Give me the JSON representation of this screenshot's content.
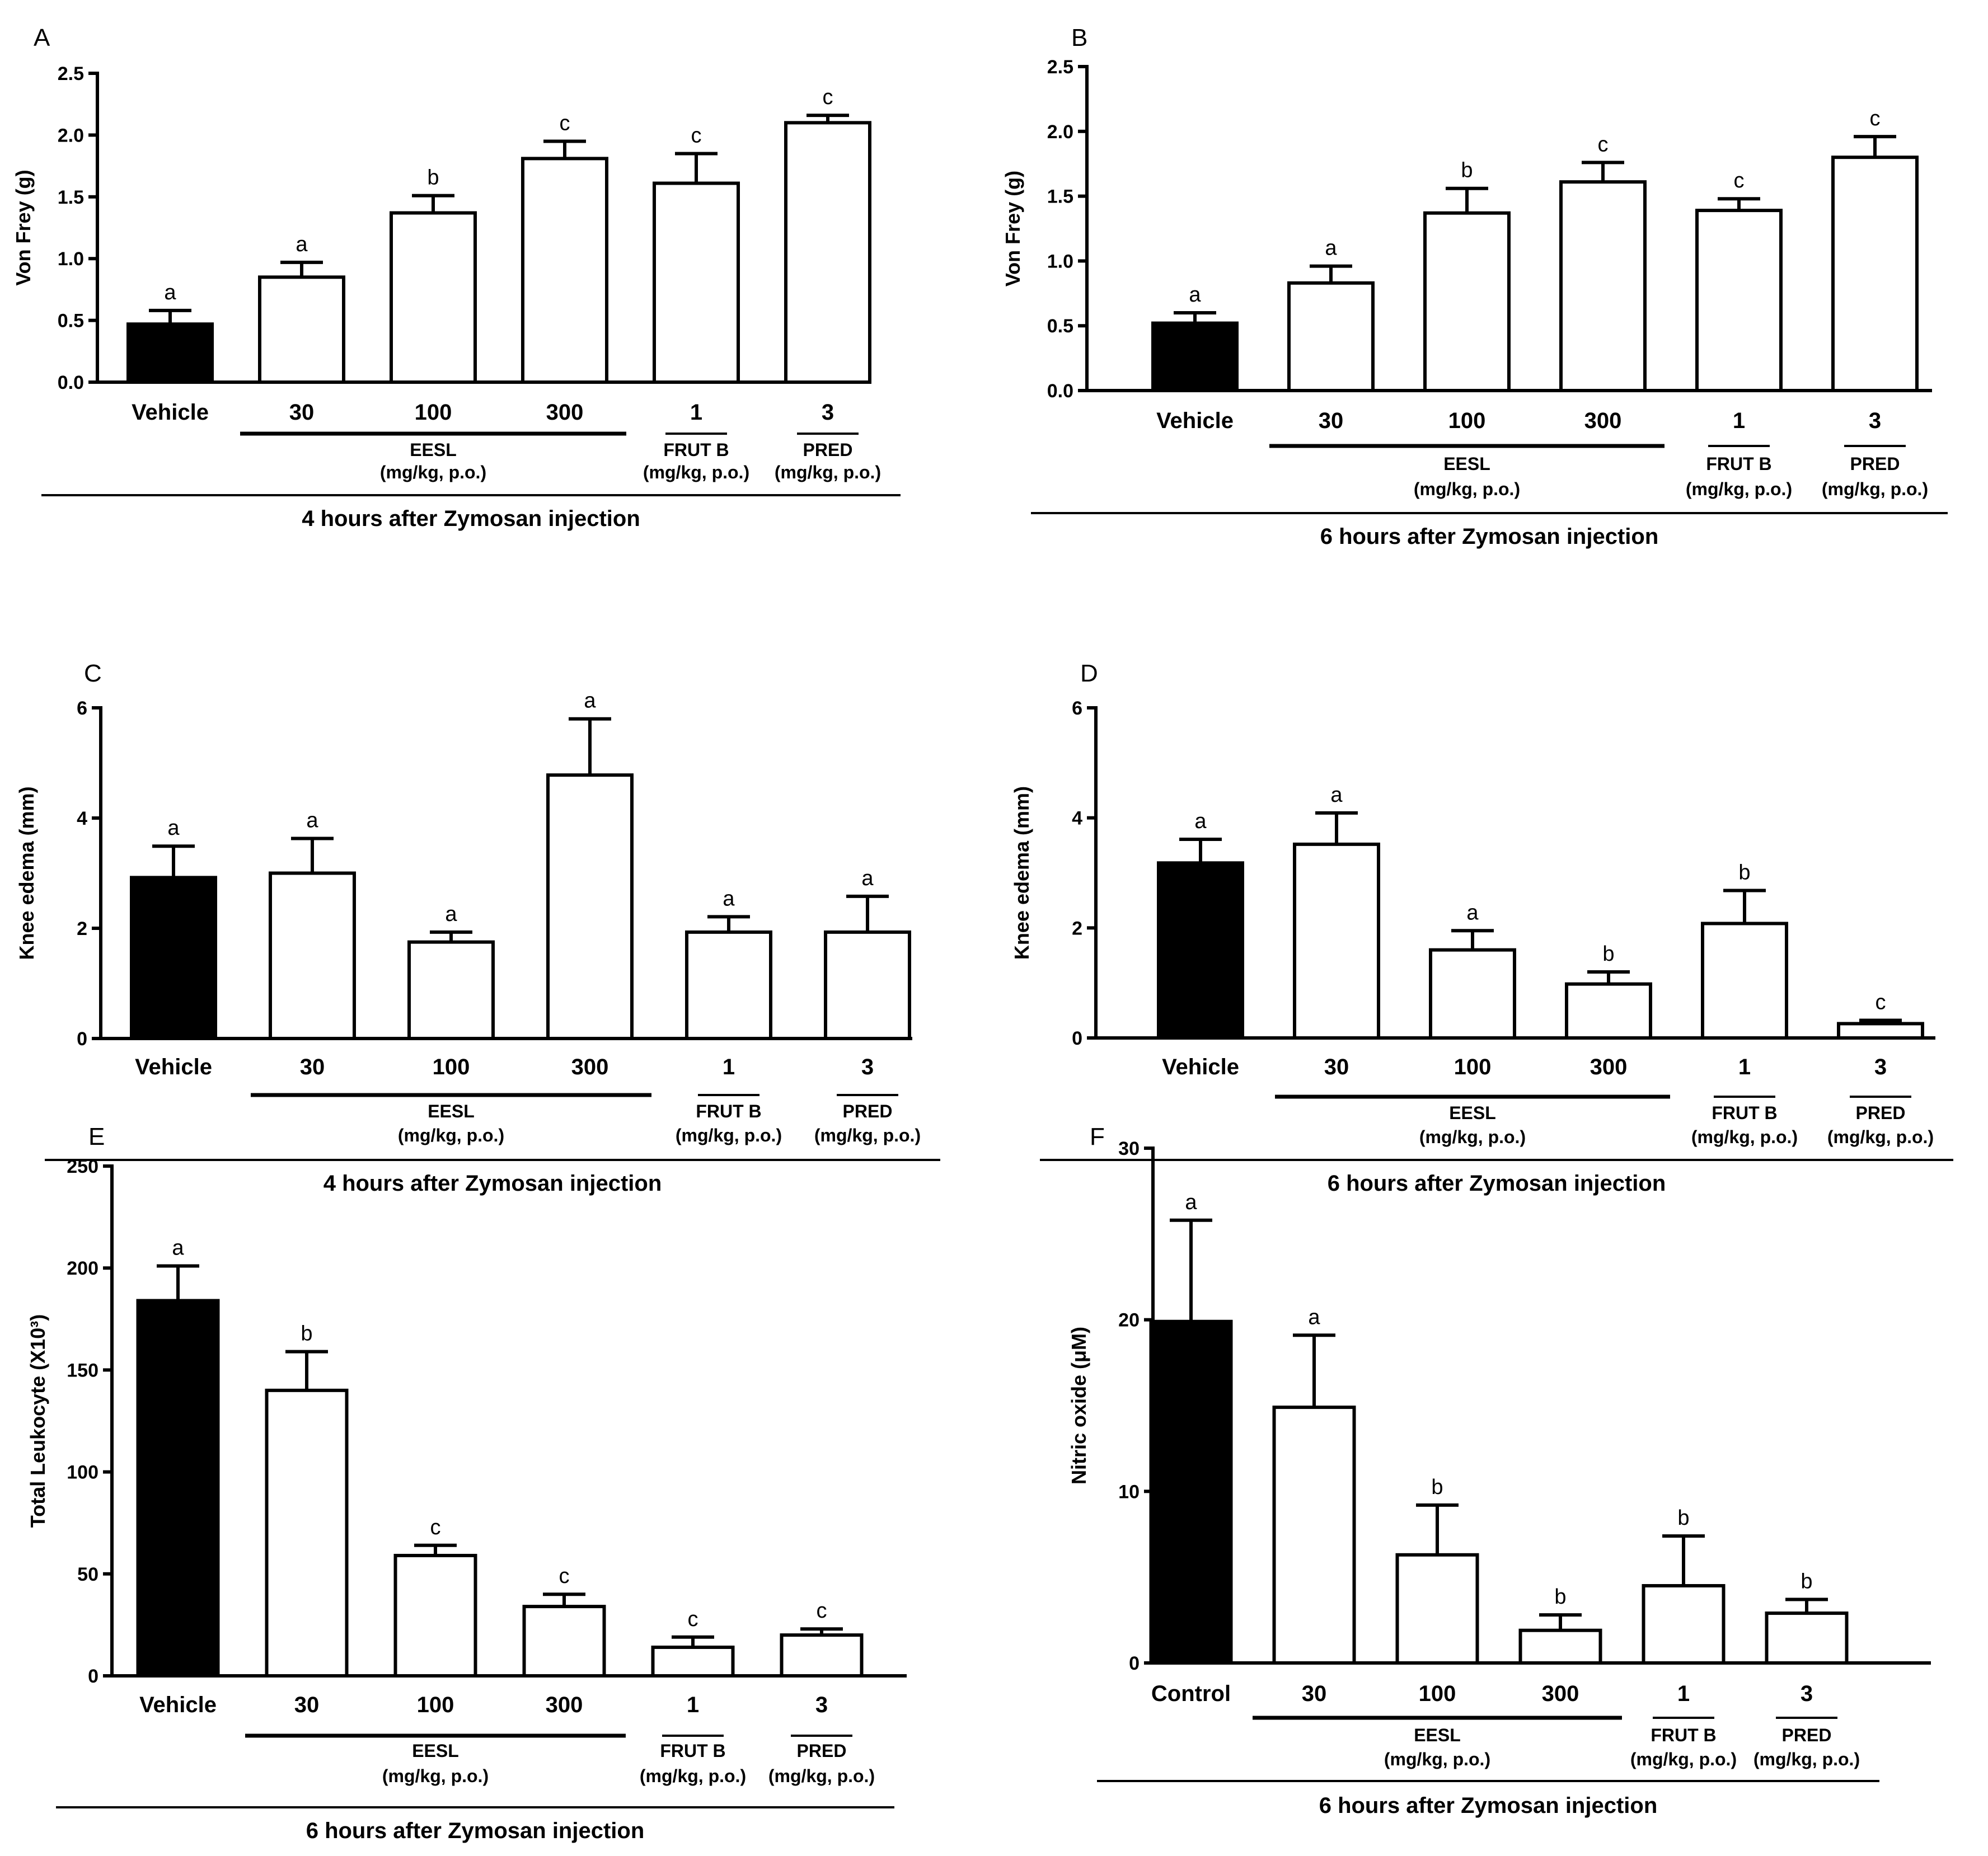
{
  "figure": {
    "background": "#ffffff",
    "vehicle_fill": "#000000",
    "treatment_fill": "#ffffff"
  },
  "chart_data": [
    {
      "panel": "A",
      "type": "bar",
      "ylabel": "Von Frey (g)",
      "ylim": [
        0,
        2.5
      ],
      "yticks": [
        "0.0",
        "0.5",
        "1.0",
        "1.5",
        "2.0",
        "2.5"
      ],
      "categories": [
        "Vehicle",
        "30",
        "100",
        "300",
        "1",
        "3"
      ],
      "values": [
        0.47,
        0.85,
        1.37,
        1.81,
        1.61,
        2.1
      ],
      "errors": [
        0.11,
        0.12,
        0.14,
        0.14,
        0.24,
        0.06
      ],
      "letters": [
        "a",
        "a",
        "b",
        "c",
        "c",
        "c"
      ],
      "groups": [
        {
          "from": 1,
          "to": 3,
          "label": "EESL",
          "sublabel": "(mg/kg, p.o.)"
        },
        {
          "from": 4,
          "to": 4,
          "label": "FRUT B",
          "sublabel": "(mg/kg, p.o.)"
        },
        {
          "from": 5,
          "to": 5,
          "label": "PRED",
          "sublabel": "(mg/kg, p.o.)"
        }
      ],
      "caption": "4 hours after Zymosan injection"
    },
    {
      "panel": "B",
      "type": "bar",
      "ylabel": "Von Frey (g)",
      "ylim": [
        0,
        2.5
      ],
      "yticks": [
        "0.0",
        "0.5",
        "1.0",
        "1.5",
        "2.0",
        "2.5"
      ],
      "categories": [
        "Vehicle",
        "30",
        "100",
        "300",
        "1",
        "3"
      ],
      "values": [
        0.52,
        0.83,
        1.37,
        1.61,
        1.39,
        1.8
      ],
      "errors": [
        0.08,
        0.13,
        0.19,
        0.15,
        0.09,
        0.16
      ],
      "letters": [
        "a",
        "a",
        "b",
        "c",
        "c",
        "c"
      ],
      "groups": [
        {
          "from": 1,
          "to": 3,
          "label": "EESL",
          "sublabel": "(mg/kg, p.o.)"
        },
        {
          "from": 4,
          "to": 4,
          "label": "FRUT B",
          "sublabel": "(mg/kg, p.o.)"
        },
        {
          "from": 5,
          "to": 5,
          "label": "PRED",
          "sublabel": "(mg/kg, p.o.)"
        }
      ],
      "caption": "6 hours after Zymosan injection"
    },
    {
      "panel": "C",
      "type": "bar",
      "ylabel": "Knee edema (mm)",
      "ylim": [
        0,
        6
      ],
      "yticks": [
        "0",
        "2",
        "4",
        "6"
      ],
      "categories": [
        "Vehicle",
        "30",
        "100",
        "300",
        "1",
        "3"
      ],
      "values": [
        2.92,
        3.0,
        1.75,
        4.78,
        1.93,
        1.93
      ],
      "errors": [
        0.57,
        0.63,
        0.18,
        1.02,
        0.28,
        0.65
      ],
      "letters": [
        "a",
        "a",
        "a",
        "a",
        "a",
        "a"
      ],
      "groups": [
        {
          "from": 1,
          "to": 3,
          "label": "EESL",
          "sublabel": "(mg/kg, p.o.)"
        },
        {
          "from": 4,
          "to": 4,
          "label": "FRUT B",
          "sublabel": "(mg/kg, p.o.)"
        },
        {
          "from": 5,
          "to": 5,
          "label": "PRED",
          "sublabel": "(mg/kg, p.o.)"
        }
      ],
      "caption": "4 hours after Zymosan injection"
    },
    {
      "panel": "D",
      "type": "bar",
      "ylabel": "Knee edema (mm)",
      "ylim": [
        0,
        6
      ],
      "yticks": [
        "0",
        "2",
        "4",
        "6"
      ],
      "categories": [
        "Vehicle",
        "30",
        "100",
        "300",
        "1",
        "3"
      ],
      "values": [
        3.18,
        3.52,
        1.6,
        0.98,
        2.08,
        0.26
      ],
      "errors": [
        0.43,
        0.57,
        0.35,
        0.22,
        0.6,
        0.06
      ],
      "letters": [
        "a",
        "a",
        "a",
        "b",
        "b",
        "c"
      ],
      "groups": [
        {
          "from": 1,
          "to": 3,
          "label": "EESL",
          "sublabel": "(mg/kg, p.o.)"
        },
        {
          "from": 4,
          "to": 4,
          "label": "FRUT B",
          "sublabel": "(mg/kg, p.o.)"
        },
        {
          "from": 5,
          "to": 5,
          "label": "PRED",
          "sublabel": "(mg/kg, p.o.)"
        }
      ],
      "caption": "6 hours after Zymosan injection"
    },
    {
      "panel": "E",
      "type": "bar",
      "ylabel": "Total Leukocyte (X10³)",
      "ylim": [
        0,
        250
      ],
      "yticks": [
        "0",
        "50",
        "100",
        "150",
        "200",
        "250"
      ],
      "categories": [
        "Vehicle",
        "30",
        "100",
        "300",
        "1",
        "3"
      ],
      "values": [
        184,
        140,
        59,
        34,
        14,
        20
      ],
      "errors": [
        17,
        19,
        5,
        6,
        5,
        3
      ],
      "letters": [
        "a",
        "b",
        "c",
        "c",
        "c",
        "c"
      ],
      "groups": [
        {
          "from": 1,
          "to": 3,
          "label": "EESL",
          "sublabel": "(mg/kg, p.o.)"
        },
        {
          "from": 4,
          "to": 4,
          "label": "FRUT B",
          "sublabel": "(mg/kg, p.o.)"
        },
        {
          "from": 5,
          "to": 5,
          "label": "PRED",
          "sublabel": "(mg/kg, p.o.)"
        }
      ],
      "caption": "6 hours after Zymosan injection"
    },
    {
      "panel": "F",
      "type": "bar",
      "ylabel": "Nitric oxide (μM)",
      "ylim": [
        0,
        30
      ],
      "yticks": [
        "0",
        "10",
        "20",
        "30"
      ],
      "categories": [
        "Control",
        "30",
        "100",
        "300",
        "1",
        "3"
      ],
      "values": [
        19.9,
        14.9,
        6.3,
        1.9,
        4.5,
        2.9
      ],
      "errors": [
        5.9,
        4.2,
        2.9,
        0.9,
        2.9,
        0.8
      ],
      "letters": [
        "a",
        "a",
        "b",
        "b",
        "b",
        "b"
      ],
      "groups": [
        {
          "from": 1,
          "to": 3,
          "label": "EESL",
          "sublabel": "(mg/kg, p.o.)"
        },
        {
          "from": 4,
          "to": 4,
          "label": "FRUT B",
          "sublabel": "(mg/kg, p.o.)"
        },
        {
          "from": 5,
          "to": 5,
          "label": "PRED",
          "sublabel": "(mg/kg, p.o.)"
        }
      ],
      "caption": "6 hours after Zymosan injection"
    }
  ]
}
